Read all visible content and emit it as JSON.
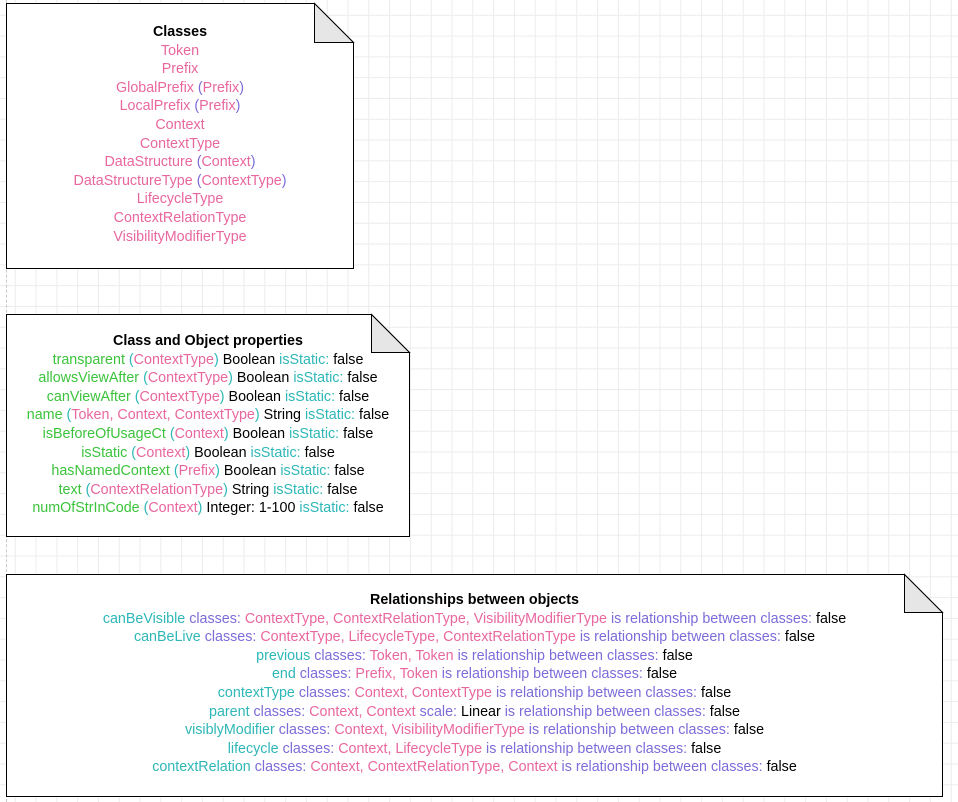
{
  "classes_note": {
    "title": "Classes",
    "items": [
      {
        "name": "Token",
        "parent": ""
      },
      {
        "name": "Prefix",
        "parent": ""
      },
      {
        "name": "GlobalPrefix",
        "parent": "Prefix"
      },
      {
        "name": "LocalPrefix",
        "parent": "Prefix"
      },
      {
        "name": "Context",
        "parent": ""
      },
      {
        "name": "ContextType",
        "parent": ""
      },
      {
        "name": "DataStructure",
        "parent": "Context"
      },
      {
        "name": "DataStructureType",
        "parent": "ContextType"
      },
      {
        "name": "LifecycleType",
        "parent": ""
      },
      {
        "name": "ContextRelationType",
        "parent": ""
      },
      {
        "name": "VisibilityModifierType",
        "parent": ""
      }
    ]
  },
  "properties_note": {
    "title": "Class and Object properties",
    "static_label": "isStatic:",
    "items": [
      {
        "name": "transparent",
        "domain": "ContextType",
        "type": "Boolean",
        "is_static": "false"
      },
      {
        "name": "allowsViewAfter",
        "domain": "ContextType",
        "type": "Boolean",
        "is_static": "false"
      },
      {
        "name": "canViewAfter",
        "domain": "ContextType",
        "type": "Boolean",
        "is_static": "false"
      },
      {
        "name": "name",
        "domain": "Token, Context, ContextType",
        "type": "String",
        "is_static": "false"
      },
      {
        "name": "isBeforeOfUsageCt",
        "domain": "Context",
        "type": "Boolean",
        "is_static": "false"
      },
      {
        "name": "isStatic",
        "domain": "Context",
        "type": "Boolean",
        "is_static": "false"
      },
      {
        "name": "hasNamedContext",
        "domain": "Prefix",
        "type": "Boolean",
        "is_static": "false"
      },
      {
        "name": "text",
        "domain": "ContextRelationType",
        "type": "String",
        "is_static": "false"
      },
      {
        "name": "numOfStrInCode",
        "domain": "Context",
        "type": "Integer: 1-100",
        "is_static": "false"
      }
    ]
  },
  "relationships_note": {
    "title": "Relationships between objects",
    "classes_label": "classes:",
    "relationship_label": "is relationship between classes:",
    "scale_label": "scale:",
    "items": [
      {
        "name": "canBeVisible",
        "classes": "ContextType, ContextRelationType, VisibilityModifierType",
        "scale": "",
        "value": "false"
      },
      {
        "name": "canBeLive",
        "classes": "ContextType, LifecycleType, ContextRelationType",
        "scale": "",
        "value": "false"
      },
      {
        "name": "previous",
        "classes": "Token, Token",
        "scale": "",
        "value": "false"
      },
      {
        "name": "end",
        "classes": "Prefix, Token",
        "scale": "",
        "value": "false"
      },
      {
        "name": "contextType",
        "classes": "Context, ContextType",
        "scale": "",
        "value": "false"
      },
      {
        "name": "parent",
        "classes": "Context, Context",
        "scale": "Linear",
        "value": "false"
      },
      {
        "name": "visiblyModifier",
        "classes": "Context, VisibilityModifierType",
        "scale": "",
        "value": "false"
      },
      {
        "name": "lifecycle",
        "classes": "Context, LifecycleType",
        "scale": "",
        "value": "false"
      },
      {
        "name": "contextRelation",
        "classes": "Context, ContextRelationType, Context",
        "scale": "",
        "value": "false"
      }
    ]
  },
  "colors": {
    "class_name": "#e8679f",
    "parenthesis": "#7b6cd9",
    "property_name": "#3cc33c",
    "keyword": "#2fb7b7",
    "value": "#000000",
    "border": "#000000",
    "fold_fill": "#e6e6e6"
  }
}
